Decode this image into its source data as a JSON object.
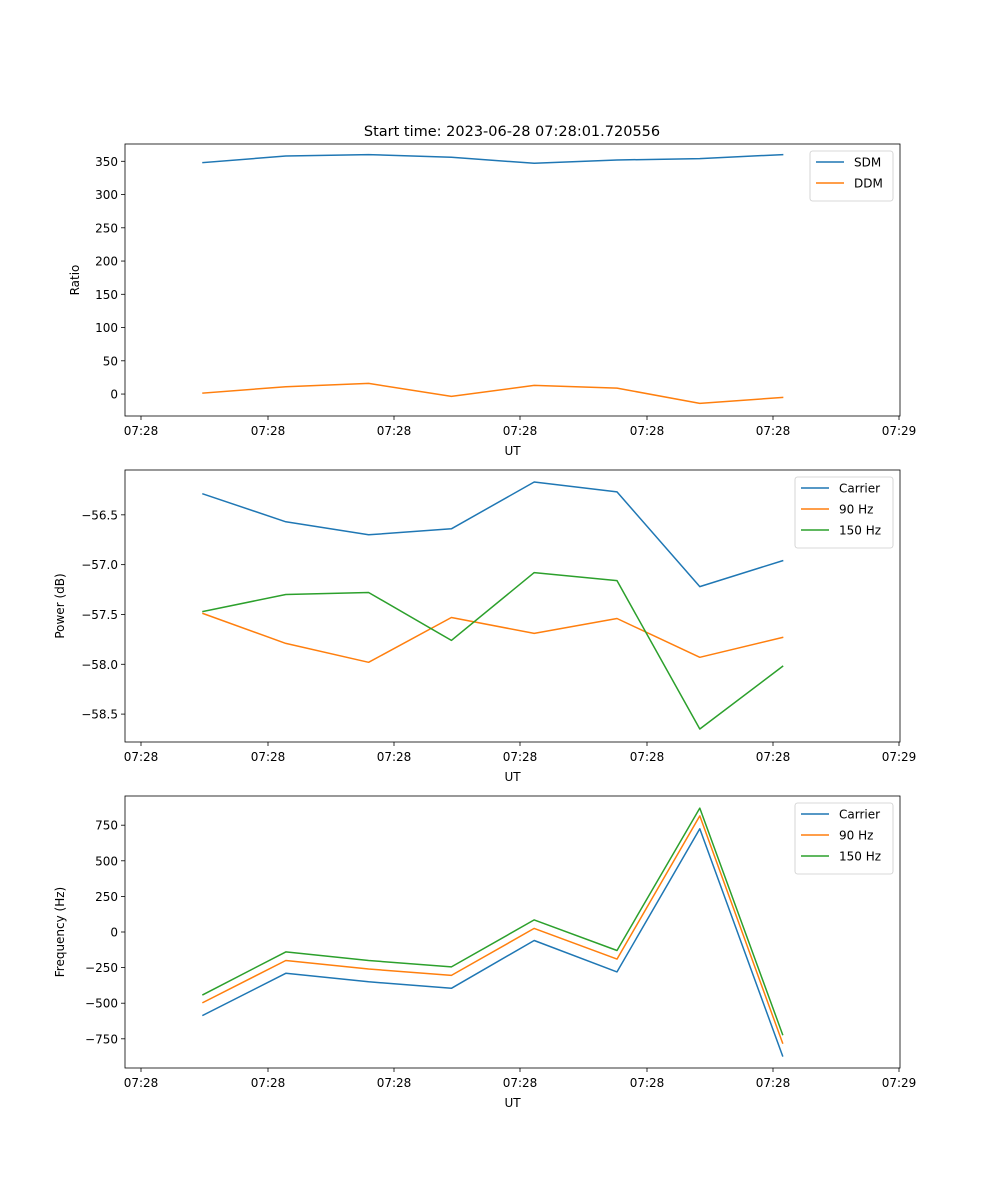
{
  "title": "Start time: 2023-06-28 07:28:01.720556",
  "chart_data": [
    {
      "type": "line",
      "xlabel": "UT",
      "ylabel": "Ratio",
      "x_tick_labels": [
        "07:28",
        "07:28",
        "07:28",
        "07:28",
        "07:28",
        "07:28",
        "07:29"
      ],
      "y_ticks": [
        0,
        50,
        100,
        150,
        200,
        250,
        300,
        350
      ],
      "ylim": [
        -33,
        376
      ],
      "legend_position": "top-right",
      "series": [
        {
          "name": "SDM",
          "color": "#1f77b4",
          "values": [
            348,
            358,
            360,
            356,
            347,
            352,
            354,
            360
          ]
        },
        {
          "name": "DDM",
          "color": "#ff7f0e",
          "values": [
            1.5,
            11,
            16,
            -3.5,
            13,
            9,
            -14,
            -5
          ]
        }
      ]
    },
    {
      "type": "line",
      "xlabel": "UT",
      "ylabel": "Power (dB)",
      "x_tick_labels": [
        "07:28",
        "07:28",
        "07:28",
        "07:28",
        "07:28",
        "07:28",
        "07:29"
      ],
      "y_ticks": [
        -58.5,
        -58.0,
        -57.5,
        -57.0,
        -56.5
      ],
      "y_tick_labels": [
        "−58.5",
        "−58.0",
        "−57.5",
        "−57.0",
        "−56.5"
      ],
      "ylim": [
        -58.78,
        -56.05
      ],
      "legend_position": "top-right",
      "series": [
        {
          "name": "Carrier",
          "color": "#1f77b4",
          "values": [
            -56.29,
            -56.57,
            -56.7,
            -56.64,
            -56.17,
            -56.27,
            -57.22,
            -56.96
          ]
        },
        {
          "name": "90 Hz",
          "color": "#ff7f0e",
          "values": [
            -57.49,
            -57.79,
            -57.98,
            -57.53,
            -57.69,
            -57.54,
            -57.93,
            -57.73
          ]
        },
        {
          "name": "150 Hz",
          "color": "#2ca02c",
          "values": [
            -57.47,
            -57.3,
            -57.28,
            -57.76,
            -57.08,
            -57.16,
            -58.65,
            -58.02
          ]
        }
      ]
    },
    {
      "type": "line",
      "xlabel": "UT",
      "ylabel": "Frequency (Hz)",
      "x_tick_labels": [
        "07:28",
        "07:28",
        "07:28",
        "07:28",
        "07:28",
        "07:28",
        "07:29"
      ],
      "y_ticks": [
        -750,
        -500,
        -250,
        0,
        250,
        500,
        750
      ],
      "y_tick_labels": [
        "−750",
        "−500",
        "−250",
        "0",
        "250",
        "500",
        "750"
      ],
      "ylim": [
        -955,
        955
      ],
      "legend_position": "top-right",
      "series": [
        {
          "name": "Carrier",
          "color": "#1f77b4",
          "values": [
            -585,
            -290,
            -350,
            -395,
            -60,
            -280,
            725,
            -870
          ]
        },
        {
          "name": "90 Hz",
          "color": "#ff7f0e",
          "values": [
            -495,
            -200,
            -260,
            -305,
            25,
            -190,
            815,
            -780
          ]
        },
        {
          "name": "150 Hz",
          "color": "#2ca02c",
          "values": [
            -440,
            -140,
            -200,
            -245,
            85,
            -130,
            870,
            -720
          ]
        }
      ]
    }
  ]
}
